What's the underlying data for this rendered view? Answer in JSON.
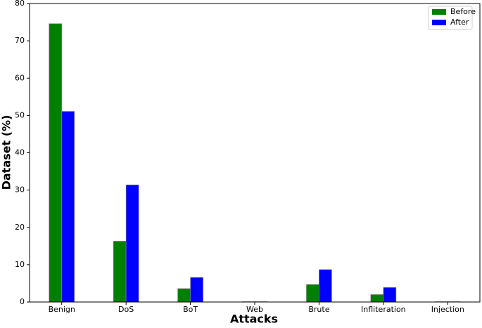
{
  "chart_data": {
    "type": "bar",
    "x_label": "Attacks",
    "y_label": "Dataset (%)",
    "categories": [
      "Benign",
      "DoS",
      "BoT",
      "Web",
      "Brute",
      "Infliteration",
      "Injection"
    ],
    "series": [
      {
        "name": "Before",
        "color": "#008000",
        "values": [
          74.6,
          16.3,
          3.6,
          0.1,
          4.7,
          2.0,
          0.1
        ]
      },
      {
        "name": "After",
        "color": "#0000ff",
        "values": [
          51.1,
          31.4,
          6.6,
          0.1,
          8.7,
          3.9,
          0.1
        ]
      }
    ],
    "ylim": [
      0,
      80
    ],
    "yticks": [
      0,
      10,
      20,
      30,
      40,
      50,
      60,
      70,
      80
    ],
    "grid": false,
    "legend": "upper right"
  }
}
